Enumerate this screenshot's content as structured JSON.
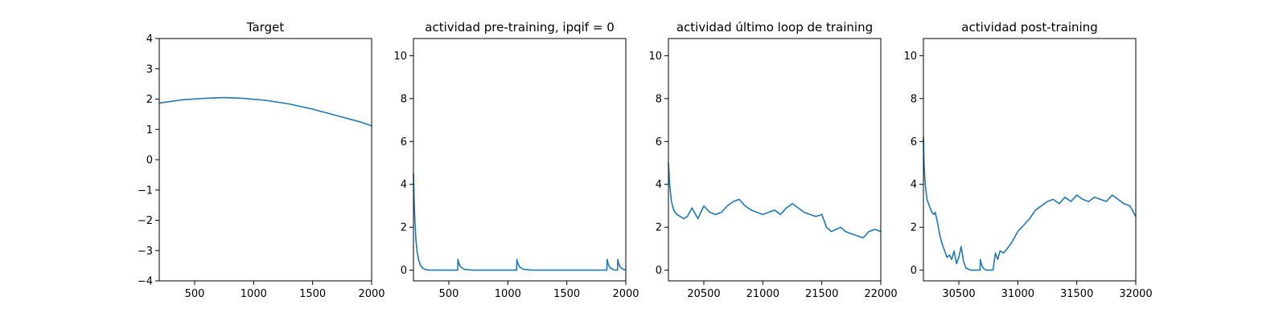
{
  "colors": {
    "series": "#1f77b4",
    "axis": "#000000",
    "background": "#ffffff"
  },
  "chart_data": [
    {
      "type": "line",
      "title": "Target",
      "xlabel": "",
      "ylabel": "",
      "xlim": [
        200,
        2000
      ],
      "ylim": [
        -4,
        4
      ],
      "xticks": [
        500,
        1000,
        1500,
        2000
      ],
      "yticks": [
        -4,
        -3,
        -2,
        -1,
        0,
        1,
        2,
        3,
        4
      ],
      "grid": false,
      "series": [
        {
          "x": [
            200,
            400,
            600,
            750,
            900,
            1100,
            1300,
            1500,
            1700,
            1900,
            2000
          ],
          "y": [
            1.87,
            1.98,
            2.03,
            2.05,
            2.03,
            1.96,
            1.84,
            1.67,
            1.46,
            1.25,
            1.12
          ]
        }
      ]
    },
    {
      "type": "line",
      "title": "actividad pre-training, ipqif = 0",
      "xlabel": "",
      "ylabel": "",
      "xlim": [
        200,
        2000
      ],
      "ylim": [
        -0.5,
        10.8
      ],
      "xticks": [
        500,
        1000,
        1500,
        2000
      ],
      "yticks": [
        0,
        2,
        4,
        6,
        8,
        10
      ],
      "grid": false,
      "series": [
        {
          "x": [
            200,
            205,
            212,
            220,
            230,
            245,
            260,
            280,
            300,
            330,
            400,
            500,
            575,
            577,
            585,
            600,
            630,
            700,
            800,
            900,
            1000,
            1075,
            1077,
            1085,
            1100,
            1130,
            1200,
            1300,
            1400,
            1500,
            1600,
            1700,
            1840,
            1842,
            1850,
            1865,
            1900,
            1930,
            1932,
            1940,
            1955,
            1980,
            2000
          ],
          "y": [
            4.5,
            3.4,
            2.3,
            1.5,
            0.9,
            0.45,
            0.22,
            0.09,
            0.03,
            0.0,
            0.0,
            0.0,
            0.0,
            0.5,
            0.32,
            0.15,
            0.04,
            0.0,
            0.0,
            0.0,
            0.0,
            0.0,
            0.5,
            0.32,
            0.15,
            0.04,
            0.0,
            0.0,
            0.0,
            0.0,
            0.0,
            0.0,
            0.0,
            0.5,
            0.3,
            0.12,
            0.01,
            0.0,
            0.5,
            0.3,
            0.13,
            0.03,
            0.0
          ]
        }
      ]
    },
    {
      "type": "line",
      "title": "actividad último loop de training",
      "xlabel": "",
      "ylabel": "",
      "xlim": [
        20200,
        22000
      ],
      "ylim": [
        -0.5,
        10.8
      ],
      "xticks": [
        20500,
        21000,
        21500,
        22000
      ],
      "yticks": [
        0,
        2,
        4,
        6,
        8,
        10
      ],
      "grid": false,
      "series": [
        {
          "x": [
            20200,
            20210,
            20225,
            20245,
            20270,
            20300,
            20330,
            20360,
            20400,
            20450,
            20500,
            20550,
            20600,
            20650,
            20700,
            20750,
            20800,
            20850,
            20900,
            20950,
            21000,
            21050,
            21100,
            21150,
            21200,
            21250,
            21300,
            21350,
            21400,
            21450,
            21500,
            21540,
            21580,
            21620,
            21660,
            21700,
            21750,
            21800,
            21850,
            21900,
            21950,
            22000
          ],
          "y": [
            5.0,
            4.0,
            3.2,
            2.8,
            2.6,
            2.5,
            2.4,
            2.5,
            2.9,
            2.4,
            3.0,
            2.7,
            2.6,
            2.7,
            3.0,
            3.2,
            3.3,
            3.0,
            2.8,
            2.7,
            2.6,
            2.7,
            2.8,
            2.6,
            2.9,
            3.1,
            2.9,
            2.7,
            2.6,
            2.5,
            2.6,
            2.0,
            1.8,
            1.9,
            2.0,
            1.8,
            1.7,
            1.6,
            1.5,
            1.8,
            1.9,
            1.8
          ]
        }
      ]
    },
    {
      "type": "line",
      "title": "actividad post-training",
      "xlabel": "",
      "ylabel": "",
      "xlim": [
        30200,
        32000
      ],
      "ylim": [
        -0.5,
        10.8
      ],
      "xticks": [
        30500,
        31000,
        31500,
        32000
      ],
      "yticks": [
        0,
        2,
        4,
        6,
        8,
        10
      ],
      "grid": false,
      "series": [
        {
          "x": [
            30200,
            30205,
            30215,
            30230,
            30250,
            30270,
            30290,
            30300,
            30320,
            30340,
            30360,
            30380,
            30400,
            30420,
            30440,
            30460,
            30480,
            30500,
            30520,
            30540,
            30560,
            30600,
            30650,
            30680,
            30682,
            30690,
            30705,
            30730,
            30760,
            30790,
            30800,
            30810,
            30830,
            30850,
            30880,
            30910,
            30950,
            31000,
            31050,
            31100,
            31150,
            31200,
            31250,
            31300,
            31350,
            31400,
            31450,
            31500,
            31550,
            31600,
            31650,
            31700,
            31750,
            31800,
            31850,
            31900,
            31950,
            32000
          ],
          "y": [
            6.2,
            5.0,
            4.0,
            3.3,
            3.0,
            2.7,
            2.6,
            2.7,
            2.2,
            1.6,
            1.2,
            0.9,
            0.6,
            0.7,
            0.5,
            0.9,
            0.3,
            0.6,
            1.1,
            0.4,
            0.1,
            0.0,
            0.0,
            0.0,
            0.5,
            0.3,
            0.1,
            0.0,
            0.0,
            0.0,
            0.4,
            0.8,
            0.5,
            0.9,
            0.8,
            1.0,
            1.3,
            1.8,
            2.1,
            2.4,
            2.8,
            3.0,
            3.2,
            3.3,
            3.1,
            3.4,
            3.2,
            3.5,
            3.3,
            3.2,
            3.4,
            3.3,
            3.2,
            3.5,
            3.3,
            3.1,
            3.0,
            2.5
          ]
        }
      ]
    }
  ]
}
